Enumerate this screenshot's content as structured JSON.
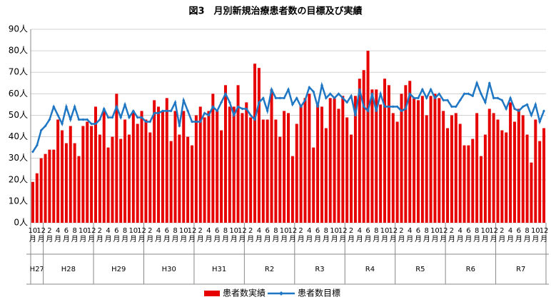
{
  "chart_data": {
    "type": "bar_line",
    "title": "図3　月別新規治療患者数の目標及び実績",
    "categories": [
      "10月",
      null,
      "12月",
      null,
      "2月",
      null,
      "4月",
      null,
      "6月",
      null,
      "8月",
      null,
      "10月",
      null,
      "12月",
      null,
      "2月",
      null,
      "4月",
      null,
      "6月",
      null,
      "8月",
      null,
      "10月",
      null,
      "12月",
      null,
      "2月",
      null,
      "4月",
      null,
      "6月",
      null,
      "8月",
      null,
      "10月",
      null,
      "12月",
      null,
      "2月",
      null,
      "4月",
      null,
      "6月",
      null,
      "8月",
      null,
      "10月",
      null,
      "12月",
      null,
      "2月",
      null,
      "4月",
      null,
      "6月",
      null,
      "8月",
      null,
      "10月",
      null,
      "12月",
      null,
      "2月",
      null,
      "4月",
      null,
      "6月",
      null,
      "8月",
      null,
      "10月",
      null,
      "12月",
      null,
      "2月",
      null,
      "4月",
      null,
      "6月",
      null,
      "8月",
      null,
      "10月",
      null,
      "12月",
      null,
      "2月",
      null,
      "4月",
      null,
      "6月",
      null,
      "8月",
      null,
      "10月",
      null,
      "12月",
      null,
      "2月",
      null,
      "4月",
      null,
      "6月",
      null,
      "8月",
      null,
      "10月",
      null,
      "12月",
      null,
      "2月",
      null,
      "4月",
      null,
      "6月",
      null,
      "8月",
      null,
      "10月",
      null,
      "12月"
    ],
    "year_labels": [
      "H27",
      "H28",
      "H29",
      "H30",
      "H31",
      "R2",
      "R3",
      "R4",
      "R5",
      "R6",
      "R7"
    ],
    "series": [
      {
        "name": "患者数実績",
        "type": "bar",
        "color": "#e60000",
        "values": [
          19,
          23,
          30,
          32,
          34,
          34,
          48,
          43,
          37,
          45,
          37,
          31,
          45,
          47,
          45,
          54,
          41,
          52,
          35,
          40,
          60,
          39,
          48,
          41,
          52,
          46,
          52,
          48,
          42,
          57,
          54,
          52,
          58,
          38,
          52,
          41,
          52,
          40,
          36,
          50,
          54,
          49,
          52,
          60,
          52,
          43,
          64,
          54,
          54,
          64,
          51,
          56,
          49,
          74,
          72,
          48,
          48,
          62,
          48,
          40,
          52,
          51,
          31,
          46,
          55,
          58,
          60,
          35,
          55,
          54,
          44,
          58,
          58,
          53,
          59,
          49,
          41,
          59,
          67,
          71,
          80,
          62,
          62,
          55,
          67,
          64,
          51,
          47,
          60,
          64,
          66,
          58,
          57,
          59,
          50,
          59,
          60,
          58,
          52,
          44,
          50,
          51,
          46,
          36,
          36,
          39,
          51,
          31,
          41,
          53,
          51,
          48,
          43,
          42,
          56,
          47,
          53,
          50,
          41,
          28,
          48,
          38,
          44
        ]
      },
      {
        "name": "患者数目標",
        "type": "line",
        "color": "#1f77c4",
        "values": [
          33,
          36,
          43,
          45,
          48,
          54,
          50,
          46,
          54,
          48,
          54,
          48,
          48,
          48,
          46,
          46,
          48,
          53,
          49,
          49,
          54,
          49,
          55,
          49,
          52,
          49,
          49,
          47,
          47,
          51,
          51,
          52,
          52,
          52,
          56,
          45,
          57,
          52,
          47,
          47,
          47,
          51,
          50,
          54,
          52,
          56,
          60,
          56,
          50,
          54,
          53,
          53,
          50,
          48,
          56,
          58,
          52,
          62,
          58,
          58,
          58,
          62,
          55,
          58,
          54,
          57,
          63,
          61,
          54,
          64,
          58,
          60,
          58,
          60,
          58,
          56,
          59,
          50,
          62,
          54,
          52,
          60,
          52,
          60,
          54,
          54,
          54,
          54,
          52,
          53,
          60,
          58,
          58,
          62,
          58,
          62,
          58,
          60,
          57,
          57,
          54,
          54,
          57,
          60,
          60,
          59,
          65,
          60,
          56,
          65,
          58,
          58,
          57,
          53,
          58,
          53,
          52,
          54,
          55,
          50,
          55,
          47,
          52
        ]
      }
    ],
    "ylim": [
      0,
      90
    ],
    "yticks": [
      {
        "value": 0,
        "label": "0人"
      },
      {
        "value": 10,
        "label": "10人"
      },
      {
        "value": 20,
        "label": "20人"
      },
      {
        "value": 30,
        "label": "30人"
      },
      {
        "value": 40,
        "label": "40人"
      },
      {
        "value": 50,
        "label": "50人"
      },
      {
        "value": 60,
        "label": "60人"
      },
      {
        "value": 70,
        "label": "70人"
      },
      {
        "value": 80,
        "label": "80人"
      },
      {
        "value": 90,
        "label": "90人"
      }
    ],
    "grid": true
  }
}
